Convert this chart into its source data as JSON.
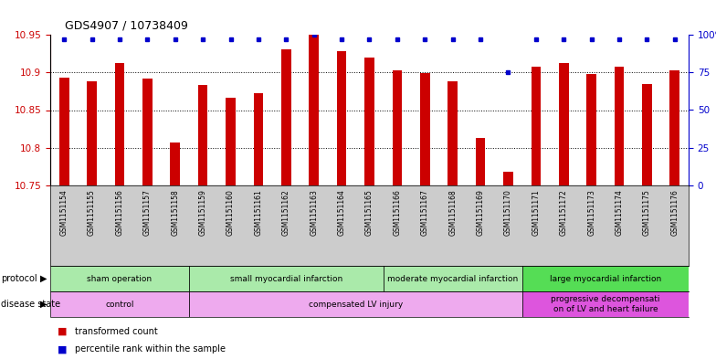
{
  "title": "GDS4907 / 10738409",
  "samples": [
    "GSM1151154",
    "GSM1151155",
    "GSM1151156",
    "GSM1151157",
    "GSM1151158",
    "GSM1151159",
    "GSM1151160",
    "GSM1151161",
    "GSM1151162",
    "GSM1151163",
    "GSM1151164",
    "GSM1151165",
    "GSM1151166",
    "GSM1151167",
    "GSM1151168",
    "GSM1151169",
    "GSM1151170",
    "GSM1151171",
    "GSM1151172",
    "GSM1151173",
    "GSM1151174",
    "GSM1151175",
    "GSM1151176"
  ],
  "bar_values": [
    10.893,
    10.888,
    10.912,
    10.892,
    10.807,
    10.883,
    10.866,
    10.872,
    10.93,
    10.95,
    10.928,
    10.92,
    10.903,
    10.899,
    10.888,
    10.813,
    10.768,
    10.908,
    10.913,
    10.898,
    10.907,
    10.885,
    10.903
  ],
  "percentile_values": [
    97,
    97,
    97,
    97,
    97,
    97,
    97,
    97,
    97,
    100,
    97,
    97,
    97,
    97,
    97,
    97,
    75,
    97,
    97,
    97,
    97,
    97,
    97
  ],
  "bar_color": "#cc0000",
  "percentile_color": "#0000cc",
  "ymin": 10.75,
  "ymax": 10.95,
  "y_ticks": [
    10.75,
    10.8,
    10.85,
    10.9,
    10.95
  ],
  "y_ticklabels": [
    "10.75",
    "10.8",
    "10.85",
    "10.9",
    "10.95"
  ],
  "y2_ticks": [
    0,
    25,
    50,
    75,
    100
  ],
  "y2_ticklabels": [
    "0",
    "25",
    "50",
    "75",
    "100%"
  ],
  "protocol_groups": [
    {
      "label": "sham operation",
      "start": 0,
      "end": 4,
      "color": "#aaeaaa"
    },
    {
      "label": "small myocardial infarction",
      "start": 5,
      "end": 11,
      "color": "#aaeaaa"
    },
    {
      "label": "moderate myocardial infarction",
      "start": 12,
      "end": 16,
      "color": "#aaeaaa"
    },
    {
      "label": "large myocardial infarction",
      "start": 17,
      "end": 22,
      "color": "#55dd55"
    }
  ],
  "disease_groups": [
    {
      "label": "control",
      "start": 0,
      "end": 4,
      "color": "#eeaaee"
    },
    {
      "label": "compensated LV injury",
      "start": 5,
      "end": 16,
      "color": "#eeaaee"
    },
    {
      "label": "progressive decompensati\non of LV and heart failure",
      "start": 17,
      "end": 22,
      "color": "#dd55dd"
    }
  ],
  "legend_items": [
    {
      "color": "#cc0000",
      "label": "transformed count"
    },
    {
      "color": "#0000cc",
      "label": "percentile rank within the sample"
    }
  ]
}
